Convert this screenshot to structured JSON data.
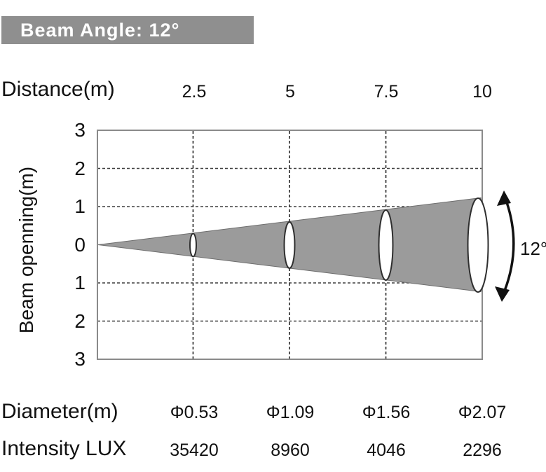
{
  "header": {
    "title": "Beam Angle: 12°",
    "banner_color": "#8f8f8f",
    "text_color": "#ffffff"
  },
  "chart_data": {
    "type": "area",
    "subtype": "beam-cone-diagram",
    "title": "Beam Angle: 12°",
    "beam_angle_deg": 12,
    "beam_angle_label": "12°",
    "x_axis": {
      "label": "Distance(m)",
      "tick_labels": [
        "2.5",
        "5",
        "7.5",
        "10"
      ],
      "values_m": [
        2.5,
        5,
        7.5,
        10
      ],
      "xlim": [
        0,
        10
      ],
      "grid": "dashed-vertical"
    },
    "y_axis": {
      "label": "Beam openning(m)",
      "tick_labels": [
        "3",
        "2",
        "1",
        "0",
        "1",
        "2",
        "3"
      ],
      "tick_values": [
        3,
        2,
        1,
        0,
        -1,
        -2,
        -3
      ],
      "ylim": [
        -3,
        3
      ],
      "grid": "dashed-horizontal"
    },
    "series": [
      {
        "name": "Diameter(m)",
        "labels": [
          "Φ0.53",
          "Φ1.09",
          "Φ1.56",
          "Φ2.07"
        ],
        "values": [
          0.53,
          1.09,
          1.56,
          2.07
        ]
      },
      {
        "name": "Intensity LUX",
        "labels": [
          "35420",
          "8960",
          "4046",
          "2296"
        ],
        "values": [
          35420,
          8960,
          4046,
          2296
        ]
      }
    ],
    "rows": {
      "distance_label": "Distance(m)",
      "diameter_label": "Diameter(m)",
      "intensity_label": "Intensity LUX"
    },
    "colors": {
      "cone_fill": "#9b9b9b",
      "cone_edge": "#6e6e6e",
      "ellipse_stroke": "#2f2f2f",
      "plot_border": "#8a8a8a",
      "grid_dash": "#3f3f3f",
      "annotation": "#111111"
    }
  }
}
